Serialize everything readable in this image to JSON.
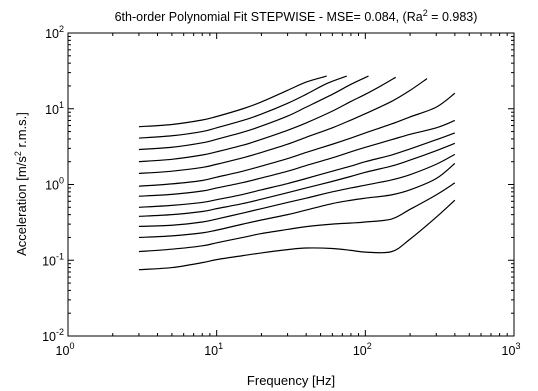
{
  "chart_data": {
    "type": "line",
    "title_parts": {
      "prefix": "6th-order Polynomial Fit STEPWISE - MSE= 0.084, (Ra",
      "sup": "2",
      "suffix": " = 0.983)"
    },
    "xlabel": "Frequency [Hz]",
    "ylabel_parts": {
      "prefix": "Acceleration [m/s",
      "sup": "2",
      "suffix": " r.m.s.]"
    },
    "xscale": "log",
    "yscale": "log",
    "xlim": [
      1,
      1000
    ],
    "ylim": [
      0.01,
      100
    ],
    "grid": false,
    "legend": "none",
    "x_ticks": [
      {
        "value": 1,
        "base": "10",
        "exp": "0"
      },
      {
        "value": 10,
        "base": "10",
        "exp": "1"
      },
      {
        "value": 100,
        "base": "10",
        "exp": "2"
      },
      {
        "value": 1000,
        "base": "10",
        "exp": "3"
      }
    ],
    "y_ticks": [
      {
        "value": 0.01,
        "base": "10",
        "exp": "-2"
      },
      {
        "value": 0.1,
        "base": "10",
        "exp": "-1"
      },
      {
        "value": 1,
        "base": "10",
        "exp": "0"
      },
      {
        "value": 10,
        "base": "10",
        "exp": "1"
      },
      {
        "value": 100,
        "base": "10",
        "exp": "2"
      }
    ],
    "line_color": "#000000",
    "series": [
      {
        "x": [
          3,
          5,
          8,
          10,
          15,
          20,
          30,
          40,
          60,
          80,
          100,
          150,
          200,
          300,
          400
        ],
        "y": [
          0.075,
          0.08,
          0.093,
          0.102,
          0.115,
          0.125,
          0.138,
          0.145,
          0.143,
          0.135,
          0.128,
          0.13,
          0.19,
          0.37,
          0.62
        ]
      },
      {
        "x": [
          3,
          5,
          8,
          10,
          15,
          20,
          30,
          40,
          60,
          80,
          100,
          150,
          200,
          300,
          400
        ],
        "y": [
          0.13,
          0.14,
          0.155,
          0.17,
          0.2,
          0.225,
          0.255,
          0.278,
          0.3,
          0.31,
          0.32,
          0.35,
          0.47,
          0.73,
          1.05
        ]
      },
      {
        "x": [
          3,
          5,
          8,
          10,
          15,
          20,
          30,
          40,
          60,
          80,
          100,
          150,
          200,
          300,
          400
        ],
        "y": [
          0.2,
          0.21,
          0.23,
          0.25,
          0.3,
          0.34,
          0.4,
          0.46,
          0.56,
          0.62,
          0.66,
          0.73,
          0.85,
          1.2,
          1.9
        ]
      },
      {
        "x": [
          3,
          5,
          8,
          10,
          15,
          20,
          30,
          40,
          60,
          80,
          100,
          150,
          200,
          300,
          400
        ],
        "y": [
          0.28,
          0.29,
          0.32,
          0.35,
          0.42,
          0.48,
          0.58,
          0.66,
          0.8,
          0.9,
          0.98,
          1.15,
          1.35,
          1.85,
          2.5
        ]
      },
      {
        "x": [
          3,
          5,
          8,
          10,
          15,
          20,
          30,
          40,
          60,
          80,
          100,
          150,
          200,
          300,
          400
        ],
        "y": [
          0.38,
          0.4,
          0.44,
          0.48,
          0.56,
          0.64,
          0.78,
          0.9,
          1.1,
          1.28,
          1.45,
          1.75,
          2.1,
          2.8,
          3.5
        ]
      },
      {
        "x": [
          3,
          5,
          8,
          10,
          15,
          20,
          30,
          40,
          60,
          80,
          100,
          150,
          200,
          300,
          400
        ],
        "y": [
          0.5,
          0.53,
          0.58,
          0.63,
          0.74,
          0.85,
          1.03,
          1.2,
          1.5,
          1.75,
          2.0,
          2.45,
          2.95,
          3.9,
          4.8
        ]
      },
      {
        "x": [
          3,
          5,
          8,
          10,
          15,
          20,
          30,
          40,
          60,
          80,
          100,
          150,
          200,
          300,
          400
        ],
        "y": [
          0.7,
          0.74,
          0.82,
          0.9,
          1.06,
          1.22,
          1.5,
          1.78,
          2.25,
          2.7,
          3.1,
          3.9,
          4.6,
          5.6,
          7.0
        ]
      },
      {
        "x": [
          3,
          5,
          8,
          10,
          15,
          20,
          30,
          40,
          60,
          80,
          100,
          150,
          200,
          300,
          400
        ],
        "y": [
          0.95,
          1.02,
          1.13,
          1.25,
          1.5,
          1.75,
          2.2,
          2.65,
          3.4,
          4.1,
          4.8,
          6.3,
          7.8,
          10.5,
          16
        ]
      },
      {
        "x": [
          3,
          5,
          8,
          10,
          15,
          20,
          30,
          40,
          60,
          80,
          100,
          150,
          200,
          260
        ],
        "y": [
          1.4,
          1.5,
          1.68,
          1.85,
          2.25,
          2.65,
          3.4,
          4.2,
          5.6,
          7.1,
          8.6,
          12.5,
          17.5,
          25
        ]
      },
      {
        "x": [
          3,
          5,
          8,
          10,
          15,
          20,
          30,
          40,
          60,
          80,
          100,
          130,
          160
        ],
        "y": [
          2.0,
          2.15,
          2.45,
          2.7,
          3.3,
          3.95,
          5.2,
          6.5,
          9.3,
          12.5,
          15.5,
          20.5,
          26
        ]
      },
      {
        "x": [
          3,
          5,
          8,
          10,
          15,
          20,
          30,
          40,
          60,
          80,
          105
        ],
        "y": [
          2.9,
          3.1,
          3.55,
          3.95,
          4.9,
          5.9,
          8.0,
          10.5,
          15.5,
          21,
          27
        ]
      },
      {
        "x": [
          3,
          5,
          8,
          10,
          15,
          20,
          30,
          40,
          55,
          75
        ],
        "y": [
          4.1,
          4.4,
          5.0,
          5.6,
          7.0,
          8.5,
          11.8,
          15.5,
          21.5,
          27
        ]
      },
      {
        "x": [
          3,
          5,
          8,
          10,
          15,
          20,
          30,
          40,
          55
        ],
        "y": [
          5.8,
          6.2,
          7.1,
          7.9,
          10.0,
          12.3,
          17.5,
          22.5,
          27
        ]
      }
    ]
  }
}
